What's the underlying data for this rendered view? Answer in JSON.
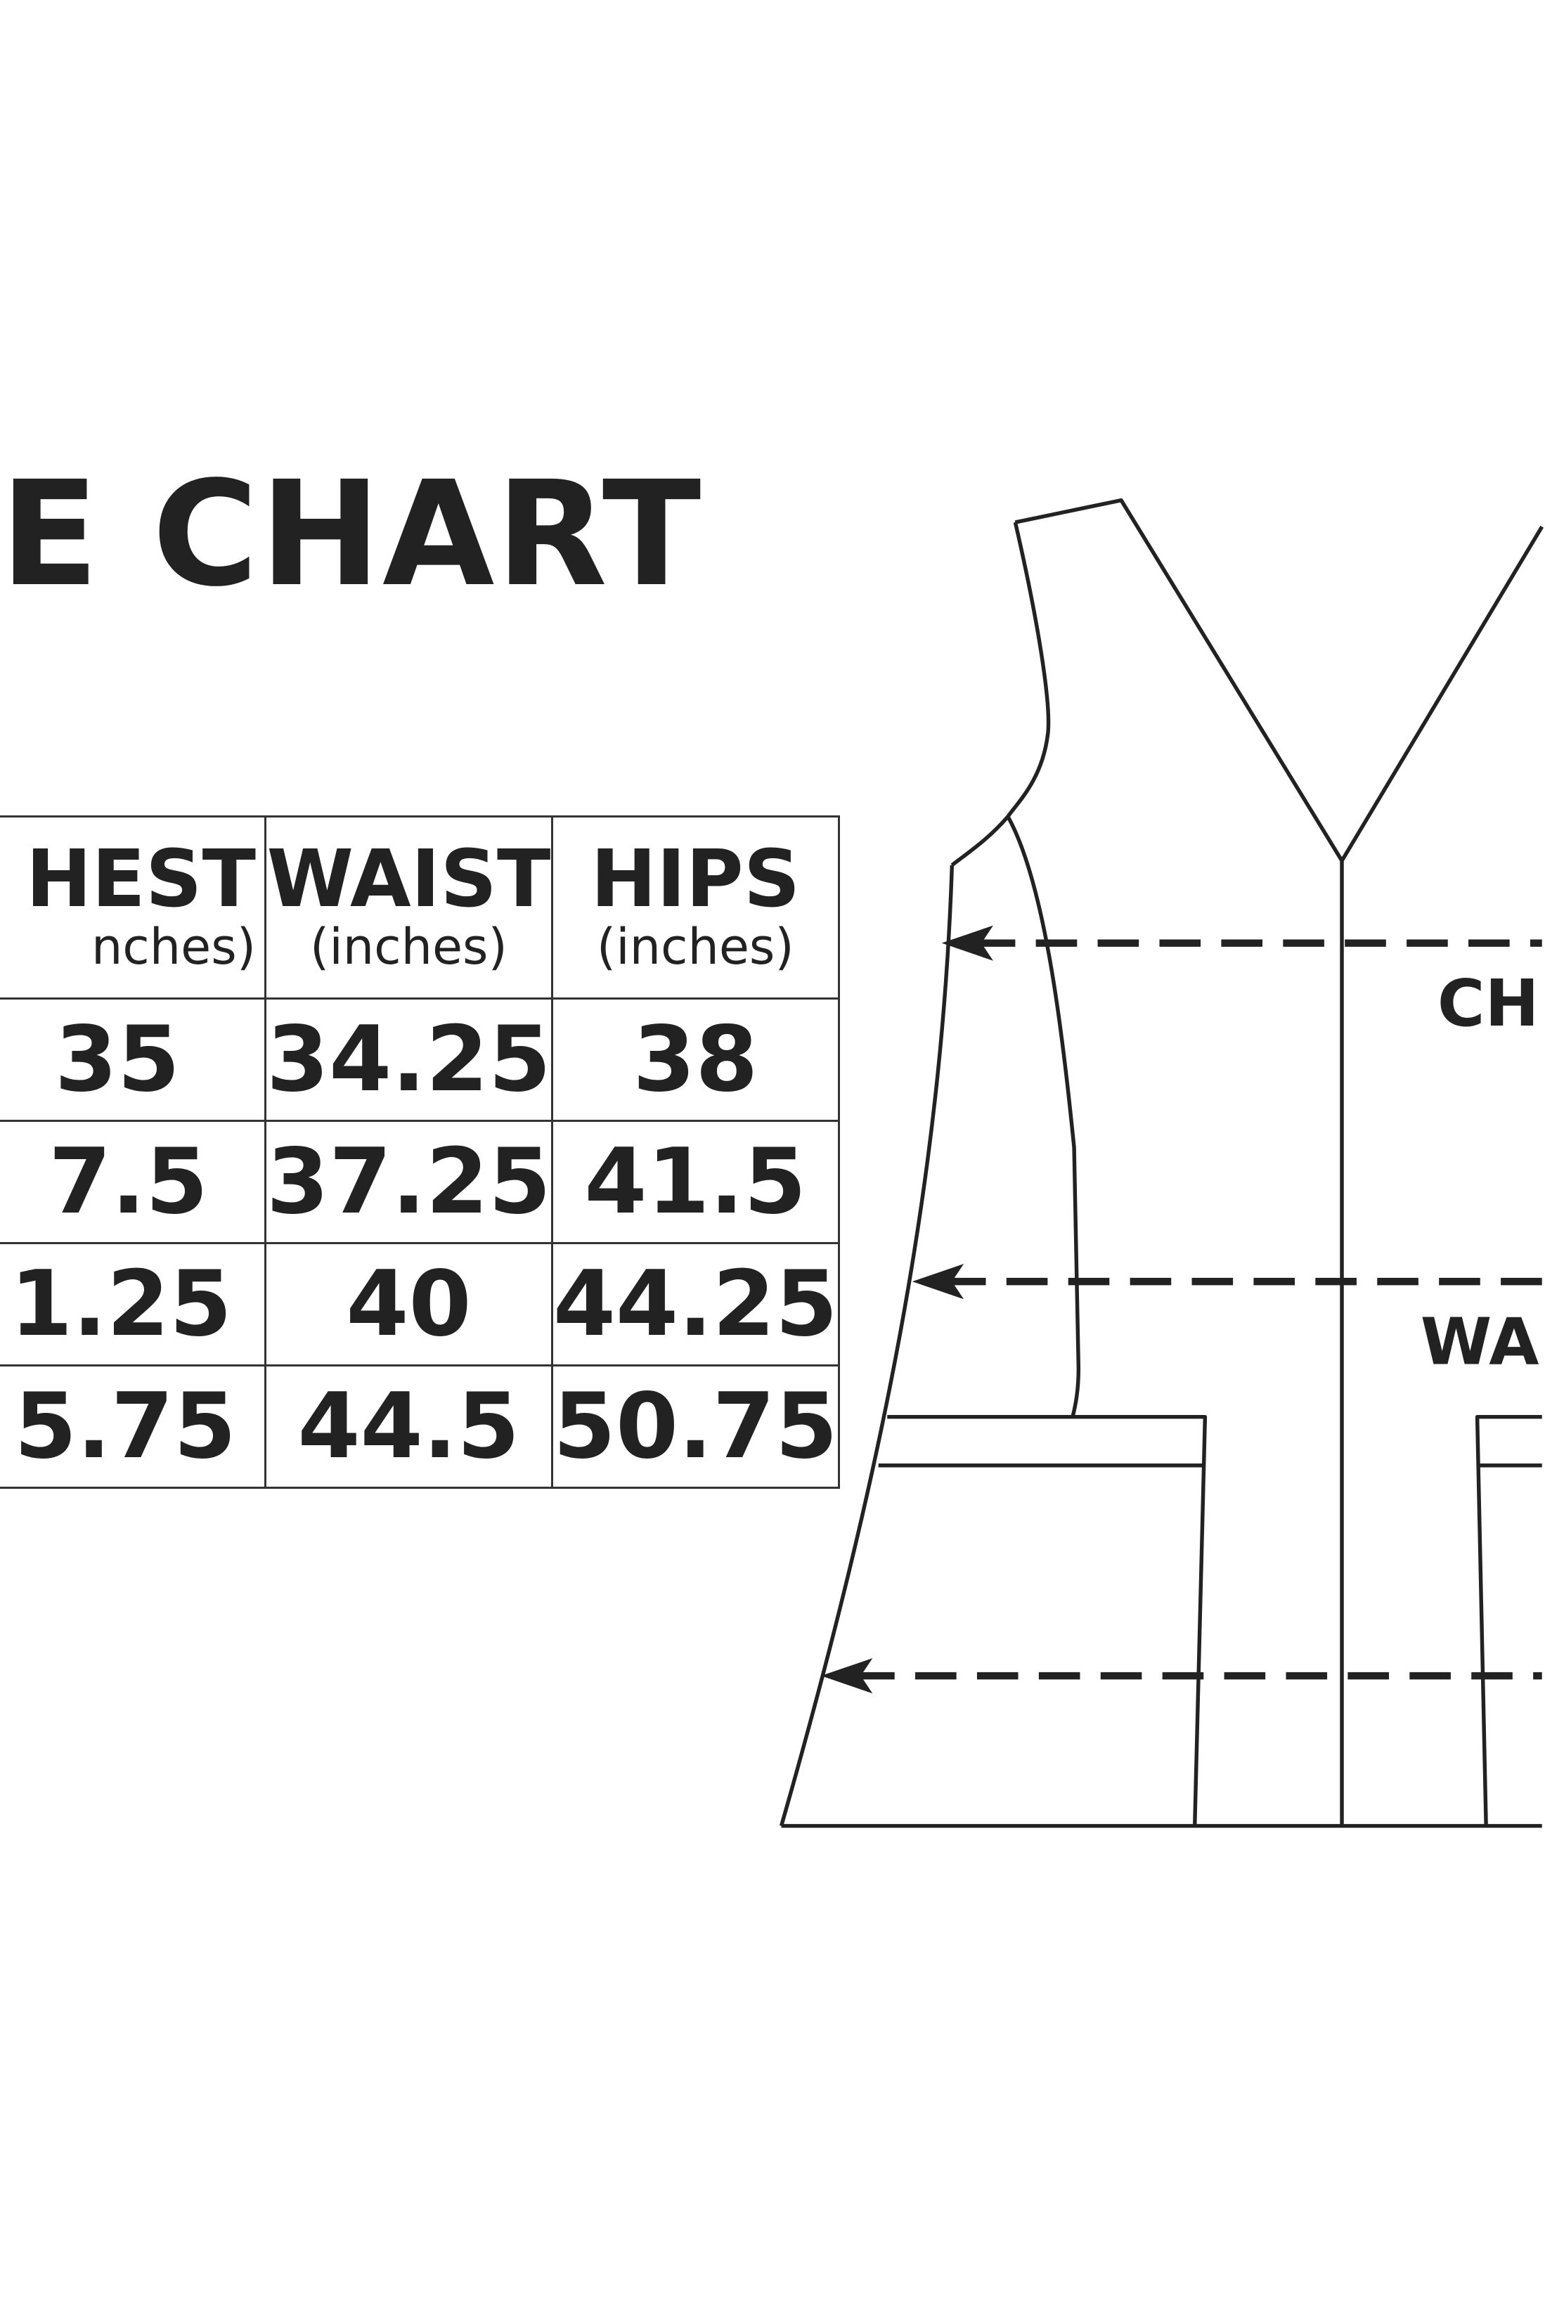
{
  "title": "E CHART",
  "table": {
    "headers": [
      {
        "label": "HEST",
        "unit": "nches)"
      },
      {
        "label": "WAIST",
        "unit": "(inches)"
      },
      {
        "label": "HIPS",
        "unit": "(inches)"
      }
    ],
    "rows": [
      [
        "35",
        "34.25",
        "38"
      ],
      [
        "7.5",
        "37.25",
        "41.5"
      ],
      [
        "1.25",
        "40",
        "44.25"
      ],
      [
        "5.75",
        "44.5",
        "50.75"
      ]
    ]
  },
  "diagram": {
    "labels": {
      "chest": "CH",
      "waist": "WA"
    },
    "line_color": "#222222"
  }
}
